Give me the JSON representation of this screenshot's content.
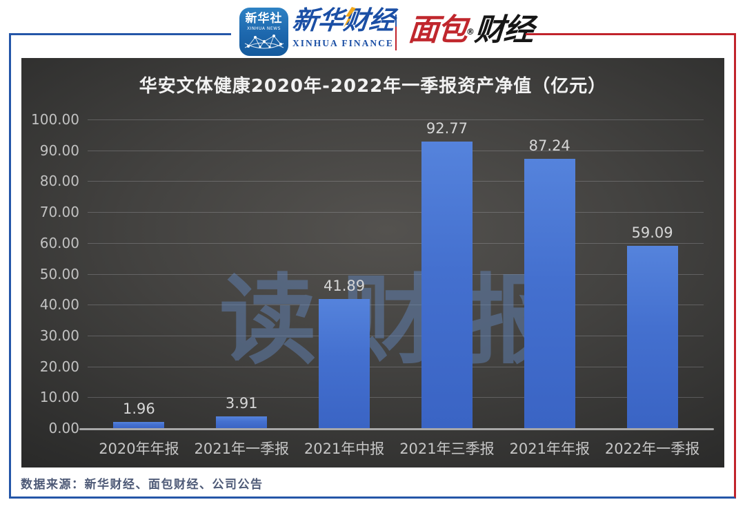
{
  "header": {
    "xinhua_news": {
      "title": "新华社",
      "subtitle": "XINHUA NEWS"
    },
    "xinhua_finance": {
      "cn": "新华财经",
      "en": "XINHUA FINANCE"
    },
    "mianbao": {
      "red": "面包",
      "reg": "®",
      "black": "财经"
    }
  },
  "chart_data": {
    "type": "bar",
    "title": "华安文体健康2020年-2022年一季报资产净值（亿元）",
    "categories": [
      "2020年年报",
      "2021年一季报",
      "2021年中报",
      "2021年三季报",
      "2021年年报",
      "2022年一季报"
    ],
    "values": [
      1.96,
      3.91,
      41.89,
      92.77,
      87.24,
      59.09
    ],
    "value_labels": [
      "1.96",
      "3.91",
      "41.89",
      "92.77",
      "87.24",
      "59.09"
    ],
    "ylim": [
      0,
      100
    ],
    "ytick_labels": [
      "0.00",
      "10.00",
      "20.00",
      "30.00",
      "40.00",
      "50.00",
      "60.00",
      "70.00",
      "80.00",
      "90.00",
      "100.00"
    ],
    "grid": true,
    "legend": "none",
    "bar_color": "#4470cf",
    "watermark": "读财报"
  },
  "footer": {
    "source": "数据来源：新华财经、面包财经、公司公告"
  },
  "colors": {
    "frame_blue": "#2456a8",
    "frame_red": "#c1232b",
    "panel_bg": "#3c3b39",
    "bar_blue": "#4470cf",
    "xinhua_blue": "#1b4fa5",
    "mianbao_red": "#c0272d",
    "bolt_yellow": "#f0a81c"
  }
}
